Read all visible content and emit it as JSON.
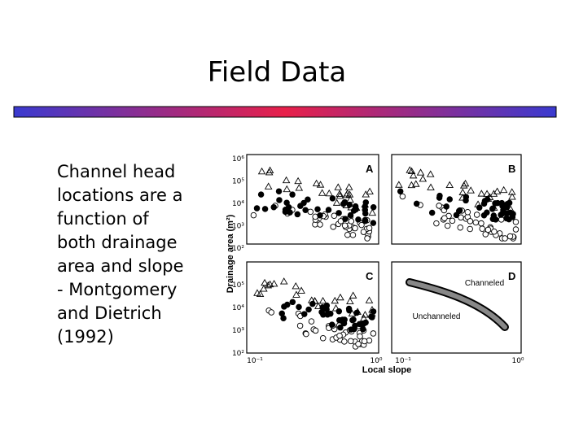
{
  "slide": {
    "title": "Field Data",
    "body": [
      "Channel head",
      "locations are a",
      "function of",
      "both drainage",
      "area and slope",
      "- Montgomery",
      "and Dietrich",
      "(1992)"
    ]
  },
  "figure": {
    "panels": [
      "A",
      "B",
      "C",
      "D"
    ],
    "y_axis_label": "Drainage area (m²)",
    "x_axis_label": "Local slope",
    "top_y_ticks": [
      "10⁶",
      "10⁵",
      "10⁴",
      "10³",
      "10²"
    ],
    "bottom_y_ticks": [
      "10⁵",
      "10⁴",
      "10³",
      "10²"
    ],
    "x_ticks": [
      "10⁻¹",
      "10⁰"
    ],
    "annotations": [
      "Channeled",
      "Unchanneled"
    ]
  }
}
